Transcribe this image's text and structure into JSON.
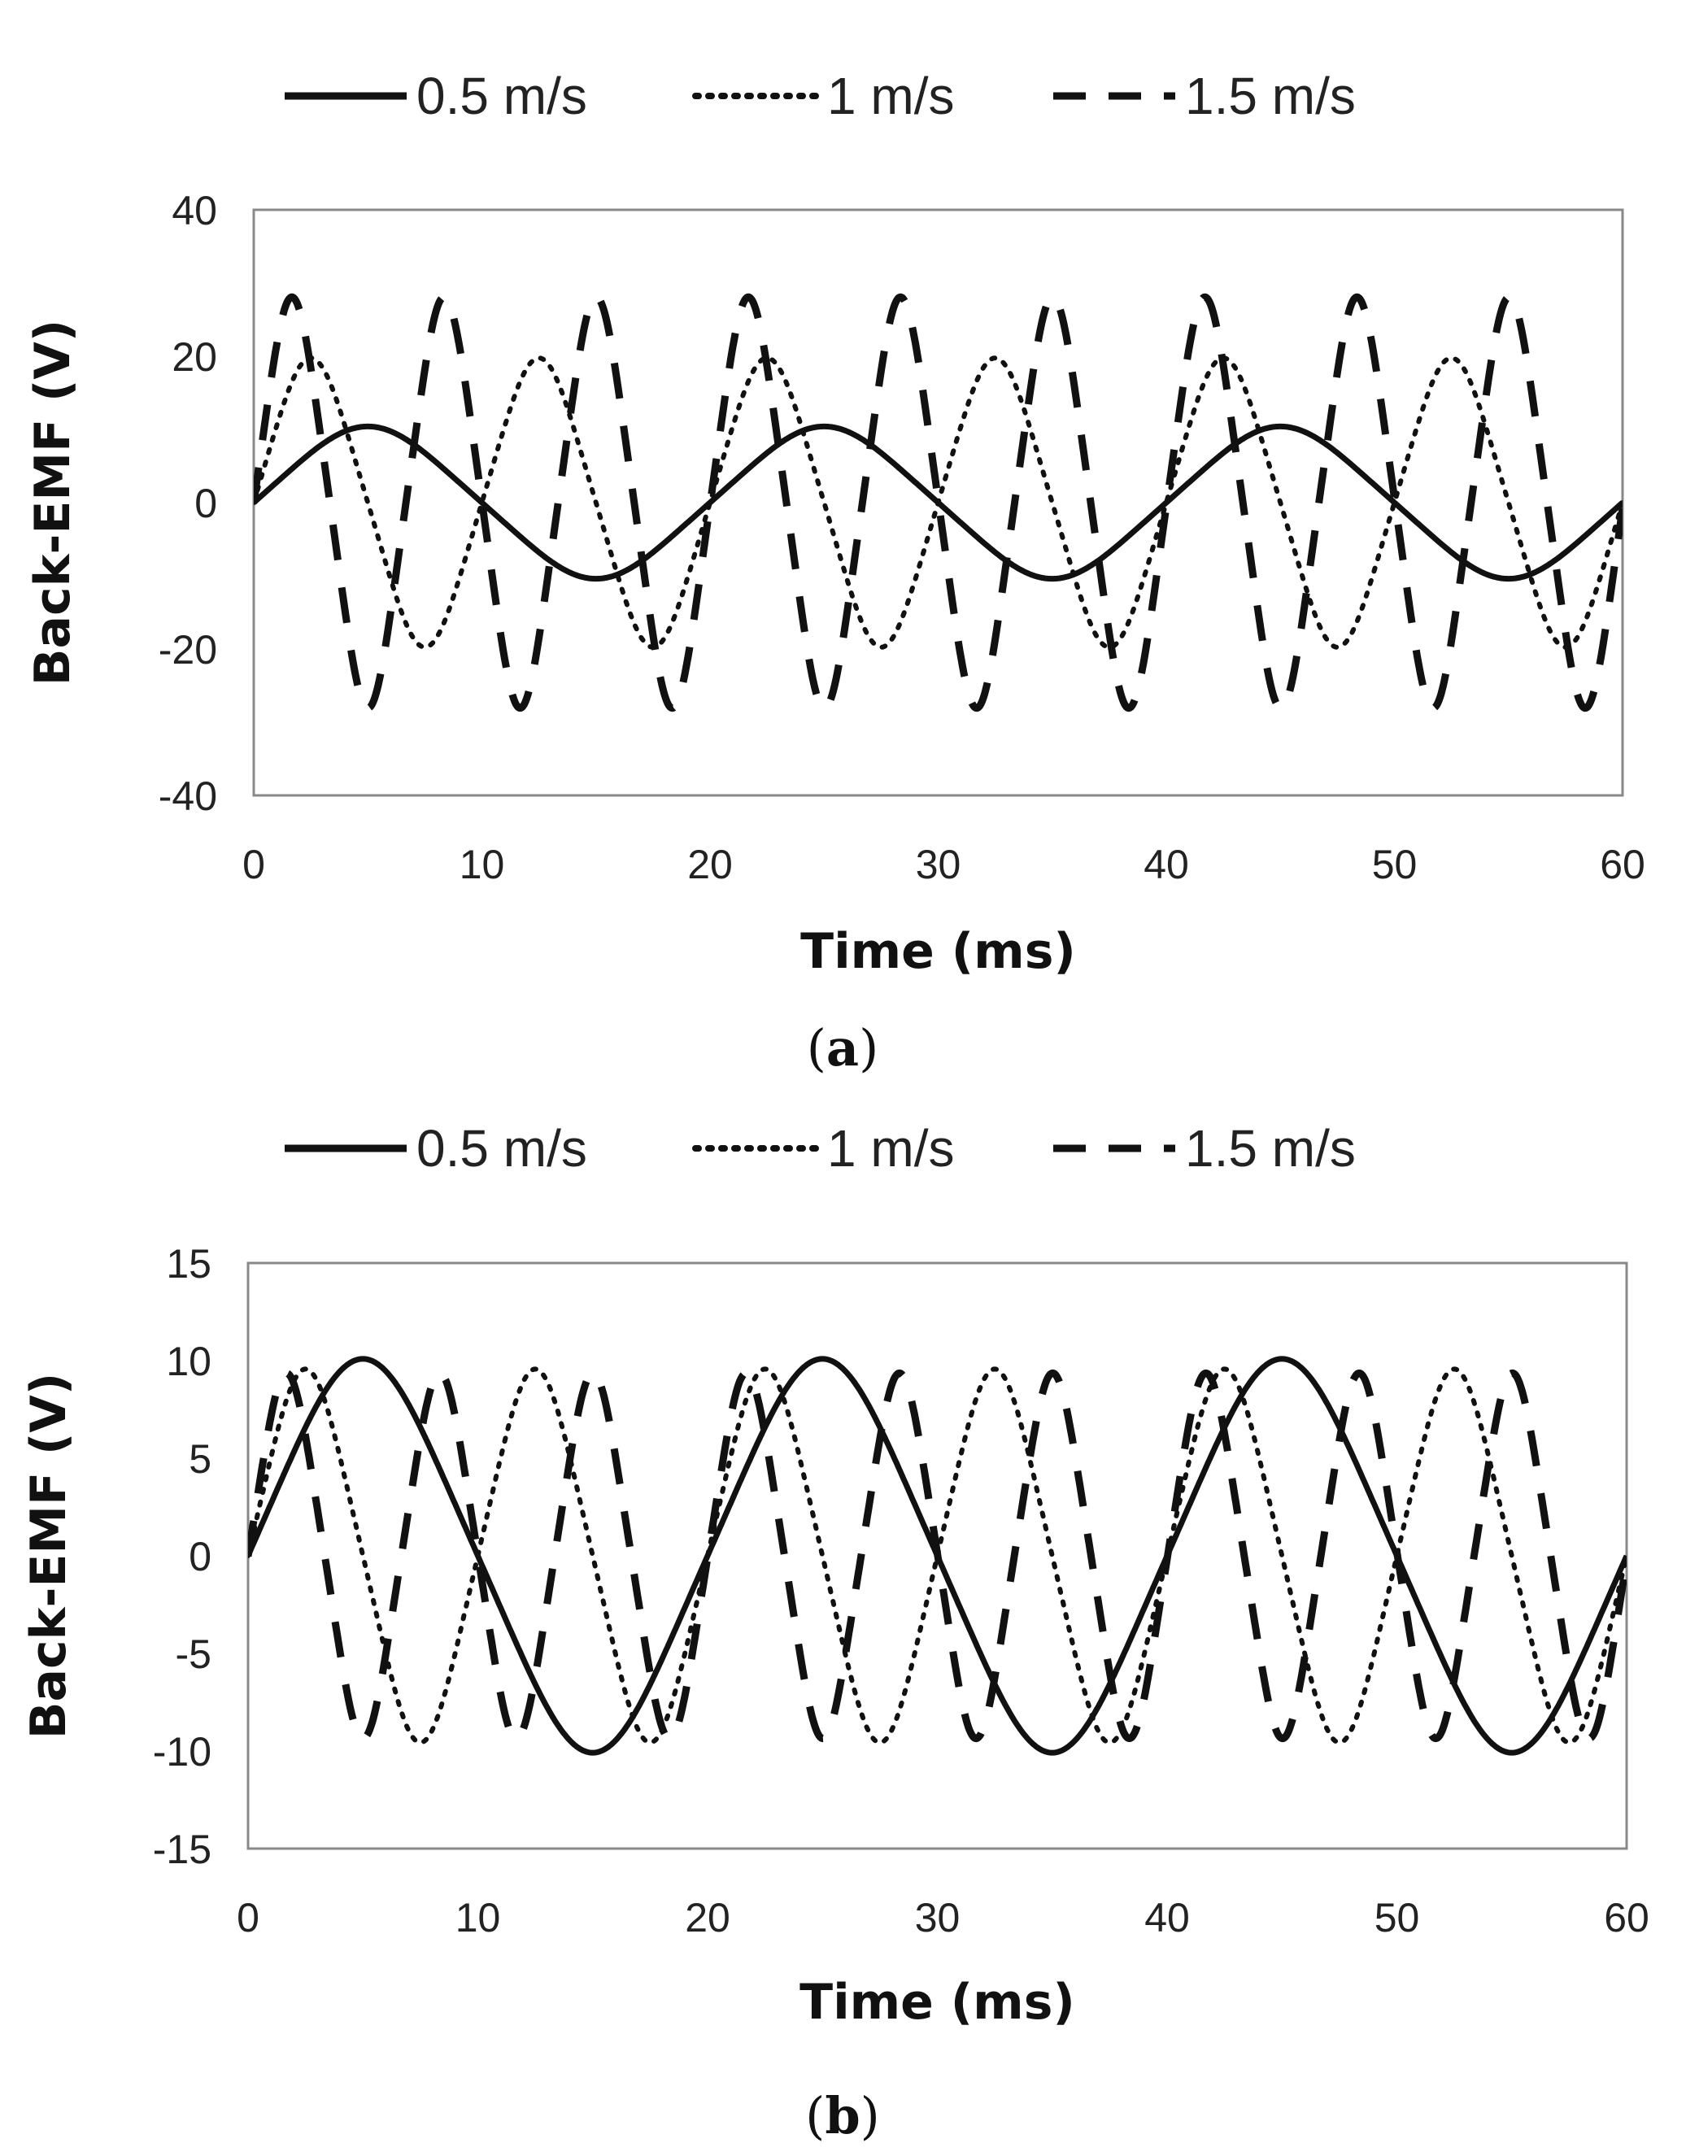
{
  "chart_data": [
    {
      "type": "line",
      "panel_label": "a",
      "xlabel": "Time (ms)",
      "ylabel": "Back-EMF (V)",
      "xlim": [
        0,
        60
      ],
      "ylim": [
        -40,
        40
      ],
      "xticks": [
        0,
        10,
        20,
        30,
        40,
        50,
        60
      ],
      "yticks": [
        -40,
        -20,
        0,
        20,
        40
      ],
      "legend_position": "top",
      "series": [
        {
          "name": "0.5 m/s",
          "style": "solid",
          "amplitude": 10,
          "period_ms": 20,
          "peak_time_ms": 5
        },
        {
          "name": "1 m/s",
          "style": "dotted",
          "amplitude": 19,
          "period_ms": 10,
          "peak_time_ms": 2.5
        },
        {
          "name": "1.5 m/s",
          "style": "dashed",
          "amplitude": 27,
          "period_ms": 6.67,
          "peak_time_ms": 1.67
        }
      ]
    },
    {
      "type": "line",
      "panel_label": "b",
      "xlabel": "Time (ms)",
      "ylabel": "Back-EMF (V)",
      "xlim": [
        0,
        60
      ],
      "ylim": [
        -15,
        15
      ],
      "xticks": [
        0,
        10,
        20,
        30,
        40,
        50,
        60
      ],
      "yticks": [
        -15,
        -10,
        -5,
        0,
        5,
        10,
        15
      ],
      "legend_position": "top",
      "series": [
        {
          "name": "0.5 m/s",
          "style": "solid",
          "amplitude": 9.7,
          "period_ms": 20,
          "peak_time_ms": 5
        },
        {
          "name": "1 m/s",
          "style": "dotted",
          "amplitude": 9.2,
          "period_ms": 10,
          "peak_time_ms": 2.5
        },
        {
          "name": "1.5 m/s",
          "style": "dashed",
          "amplitude": 9.0,
          "period_ms": 6.67,
          "peak_time_ms": 1.67
        }
      ]
    }
  ]
}
